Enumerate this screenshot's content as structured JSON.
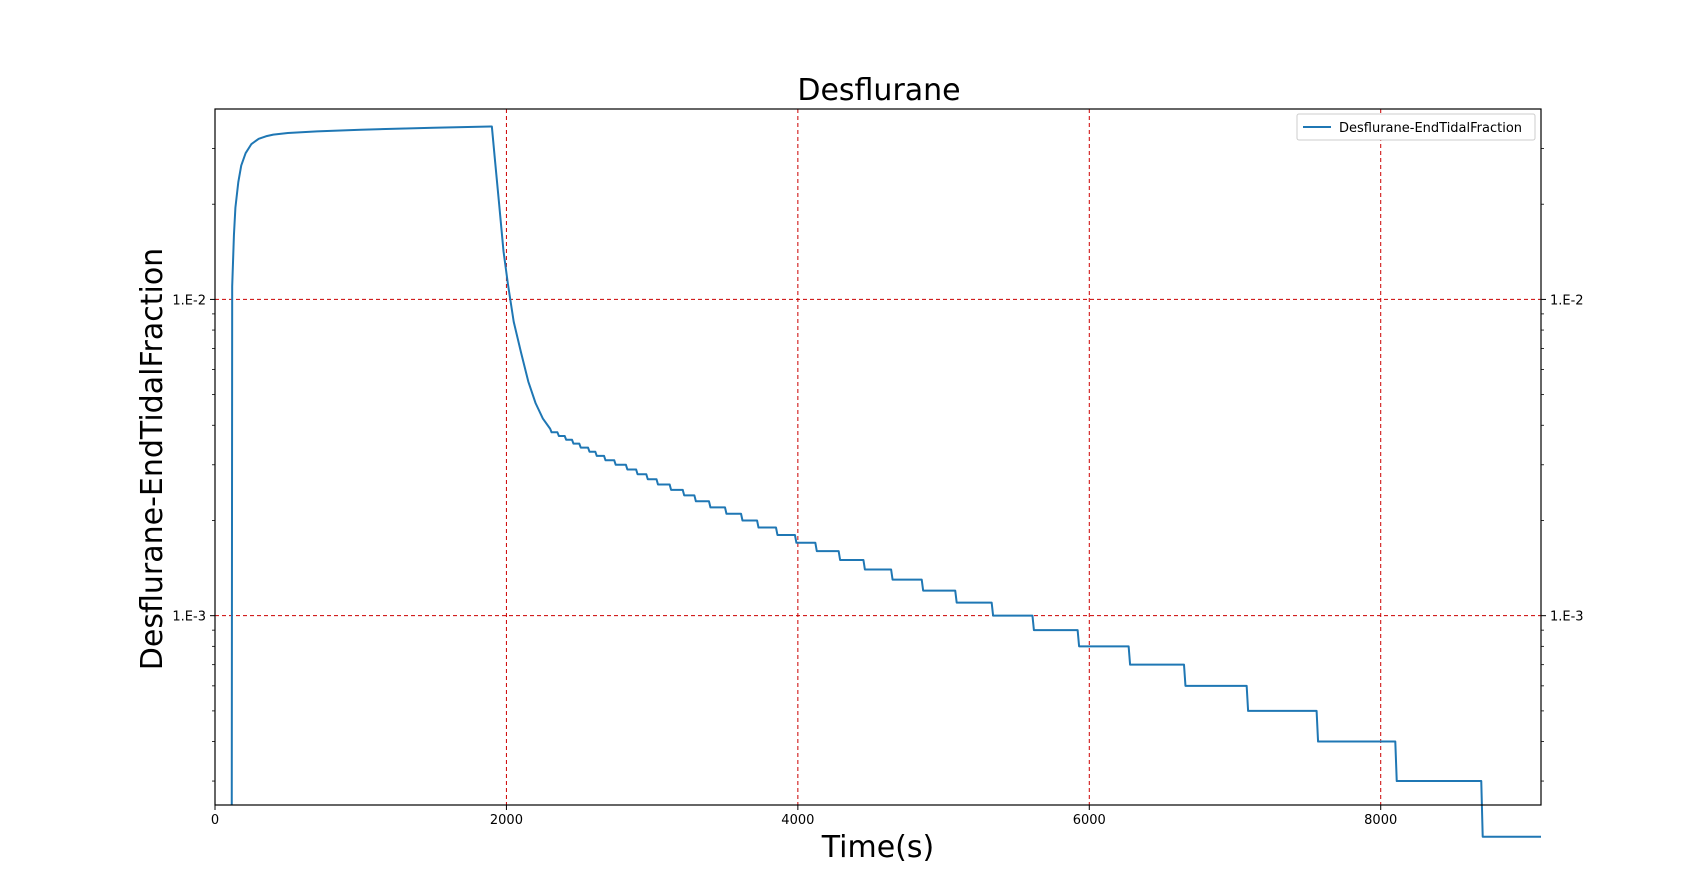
{
  "chart_data": {
    "type": "line",
    "title": "Desflurane",
    "xlabel": "Time(s)",
    "ylabel": "Desflurane-EndTidalFraction",
    "xscale": "linear",
    "yscale": "log",
    "xlim": [
      0,
      9100
    ],
    "ylim": [
      0.000252,
      0.04
    ],
    "xticks": [
      0,
      2000,
      4000,
      6000,
      8000
    ],
    "xtick_labels": [
      "0",
      "2000",
      "4000",
      "6000",
      "8000"
    ],
    "yticks": [
      0.001,
      0.01
    ],
    "ytick_labels": [
      "1.E-3",
      "1.E-2"
    ],
    "grid": true,
    "grid_color": "#cc0000",
    "legend_position": "top-right",
    "series": [
      {
        "name": "Desflurane-EndTidalFraction",
        "color": "#1f77b4",
        "points": [
          [
            115,
            0.000252
          ],
          [
            118,
            0.011
          ],
          [
            130,
            0.016
          ],
          [
            140,
            0.0195
          ],
          [
            160,
            0.0235
          ],
          [
            180,
            0.0265
          ],
          [
            210,
            0.029
          ],
          [
            250,
            0.031
          ],
          [
            300,
            0.0322
          ],
          [
            350,
            0.0328
          ],
          [
            400,
            0.0332
          ],
          [
            500,
            0.0336
          ],
          [
            700,
            0.034
          ],
          [
            1000,
            0.0344
          ],
          [
            1500,
            0.0349
          ],
          [
            1890,
            0.0352
          ],
          [
            1900,
            0.0352
          ],
          [
            1920,
            0.028
          ],
          [
            1950,
            0.02
          ],
          [
            1980,
            0.0142
          ],
          [
            2010,
            0.0112
          ],
          [
            2050,
            0.0085
          ],
          [
            2100,
            0.0068
          ],
          [
            2150,
            0.0055
          ],
          [
            2200,
            0.0047
          ],
          [
            2250,
            0.0042
          ],
          [
            2300,
            0.0039
          ],
          [
            2310,
            0.0038
          ],
          [
            2350,
            0.0038
          ],
          [
            2360,
            0.0037
          ],
          [
            2400,
            0.0037
          ],
          [
            2410,
            0.0036
          ],
          [
            2450,
            0.0036
          ],
          [
            2460,
            0.0035
          ],
          [
            2500,
            0.0035
          ],
          [
            2510,
            0.0034
          ],
          [
            2560,
            0.0034
          ],
          [
            2570,
            0.0033
          ],
          [
            2610,
            0.0033
          ],
          [
            2620,
            0.0032
          ],
          [
            2670,
            0.0032
          ],
          [
            2680,
            0.0031
          ],
          [
            2740,
            0.0031
          ],
          [
            2750,
            0.003
          ],
          [
            2820,
            0.003
          ],
          [
            2830,
            0.0029
          ],
          [
            2890,
            0.0029
          ],
          [
            2900,
            0.0028
          ],
          [
            2960,
            0.0028
          ],
          [
            2970,
            0.0027
          ],
          [
            3030,
            0.0027
          ],
          [
            3040,
            0.0026
          ],
          [
            3120,
            0.0026
          ],
          [
            3130,
            0.0025
          ],
          [
            3210,
            0.0025
          ],
          [
            3220,
            0.0024
          ],
          [
            3290,
            0.0024
          ],
          [
            3300,
            0.0023
          ],
          [
            3390,
            0.0023
          ],
          [
            3400,
            0.0022
          ],
          [
            3500,
            0.0022
          ],
          [
            3510,
            0.0021
          ],
          [
            3610,
            0.0021
          ],
          [
            3620,
            0.002
          ],
          [
            3720,
            0.002
          ],
          [
            3730,
            0.0019
          ],
          [
            3850,
            0.0019
          ],
          [
            3860,
            0.0018
          ],
          [
            3980,
            0.0018
          ],
          [
            3990,
            0.0017
          ],
          [
            4120,
            0.0017
          ],
          [
            4130,
            0.0016
          ],
          [
            4280,
            0.0016
          ],
          [
            4290,
            0.0015
          ],
          [
            4450,
            0.0015
          ],
          [
            4460,
            0.0014
          ],
          [
            4640,
            0.0014
          ],
          [
            4650,
            0.0013
          ],
          [
            4850,
            0.0013
          ],
          [
            4860,
            0.0012
          ],
          [
            5080,
            0.0012
          ],
          [
            5090,
            0.0011
          ],
          [
            5330,
            0.0011
          ],
          [
            5340,
            0.001
          ],
          [
            5610,
            0.001
          ],
          [
            5620,
            0.0009
          ],
          [
            5920,
            0.0009
          ],
          [
            5930,
            0.0008
          ],
          [
            6270,
            0.0008
          ],
          [
            6280,
            0.0007
          ],
          [
            6650,
            0.0007
          ],
          [
            6660,
            0.0006
          ],
          [
            7080,
            0.0006
          ],
          [
            7090,
            0.0005
          ],
          [
            7560,
            0.0005
          ],
          [
            7570,
            0.0004
          ],
          [
            8100,
            0.0004
          ],
          [
            8110,
            0.0003
          ],
          [
            8690,
            0.0003
          ],
          [
            8700,
            0.0002
          ],
          [
            9100,
            0.0002
          ]
        ]
      }
    ]
  }
}
